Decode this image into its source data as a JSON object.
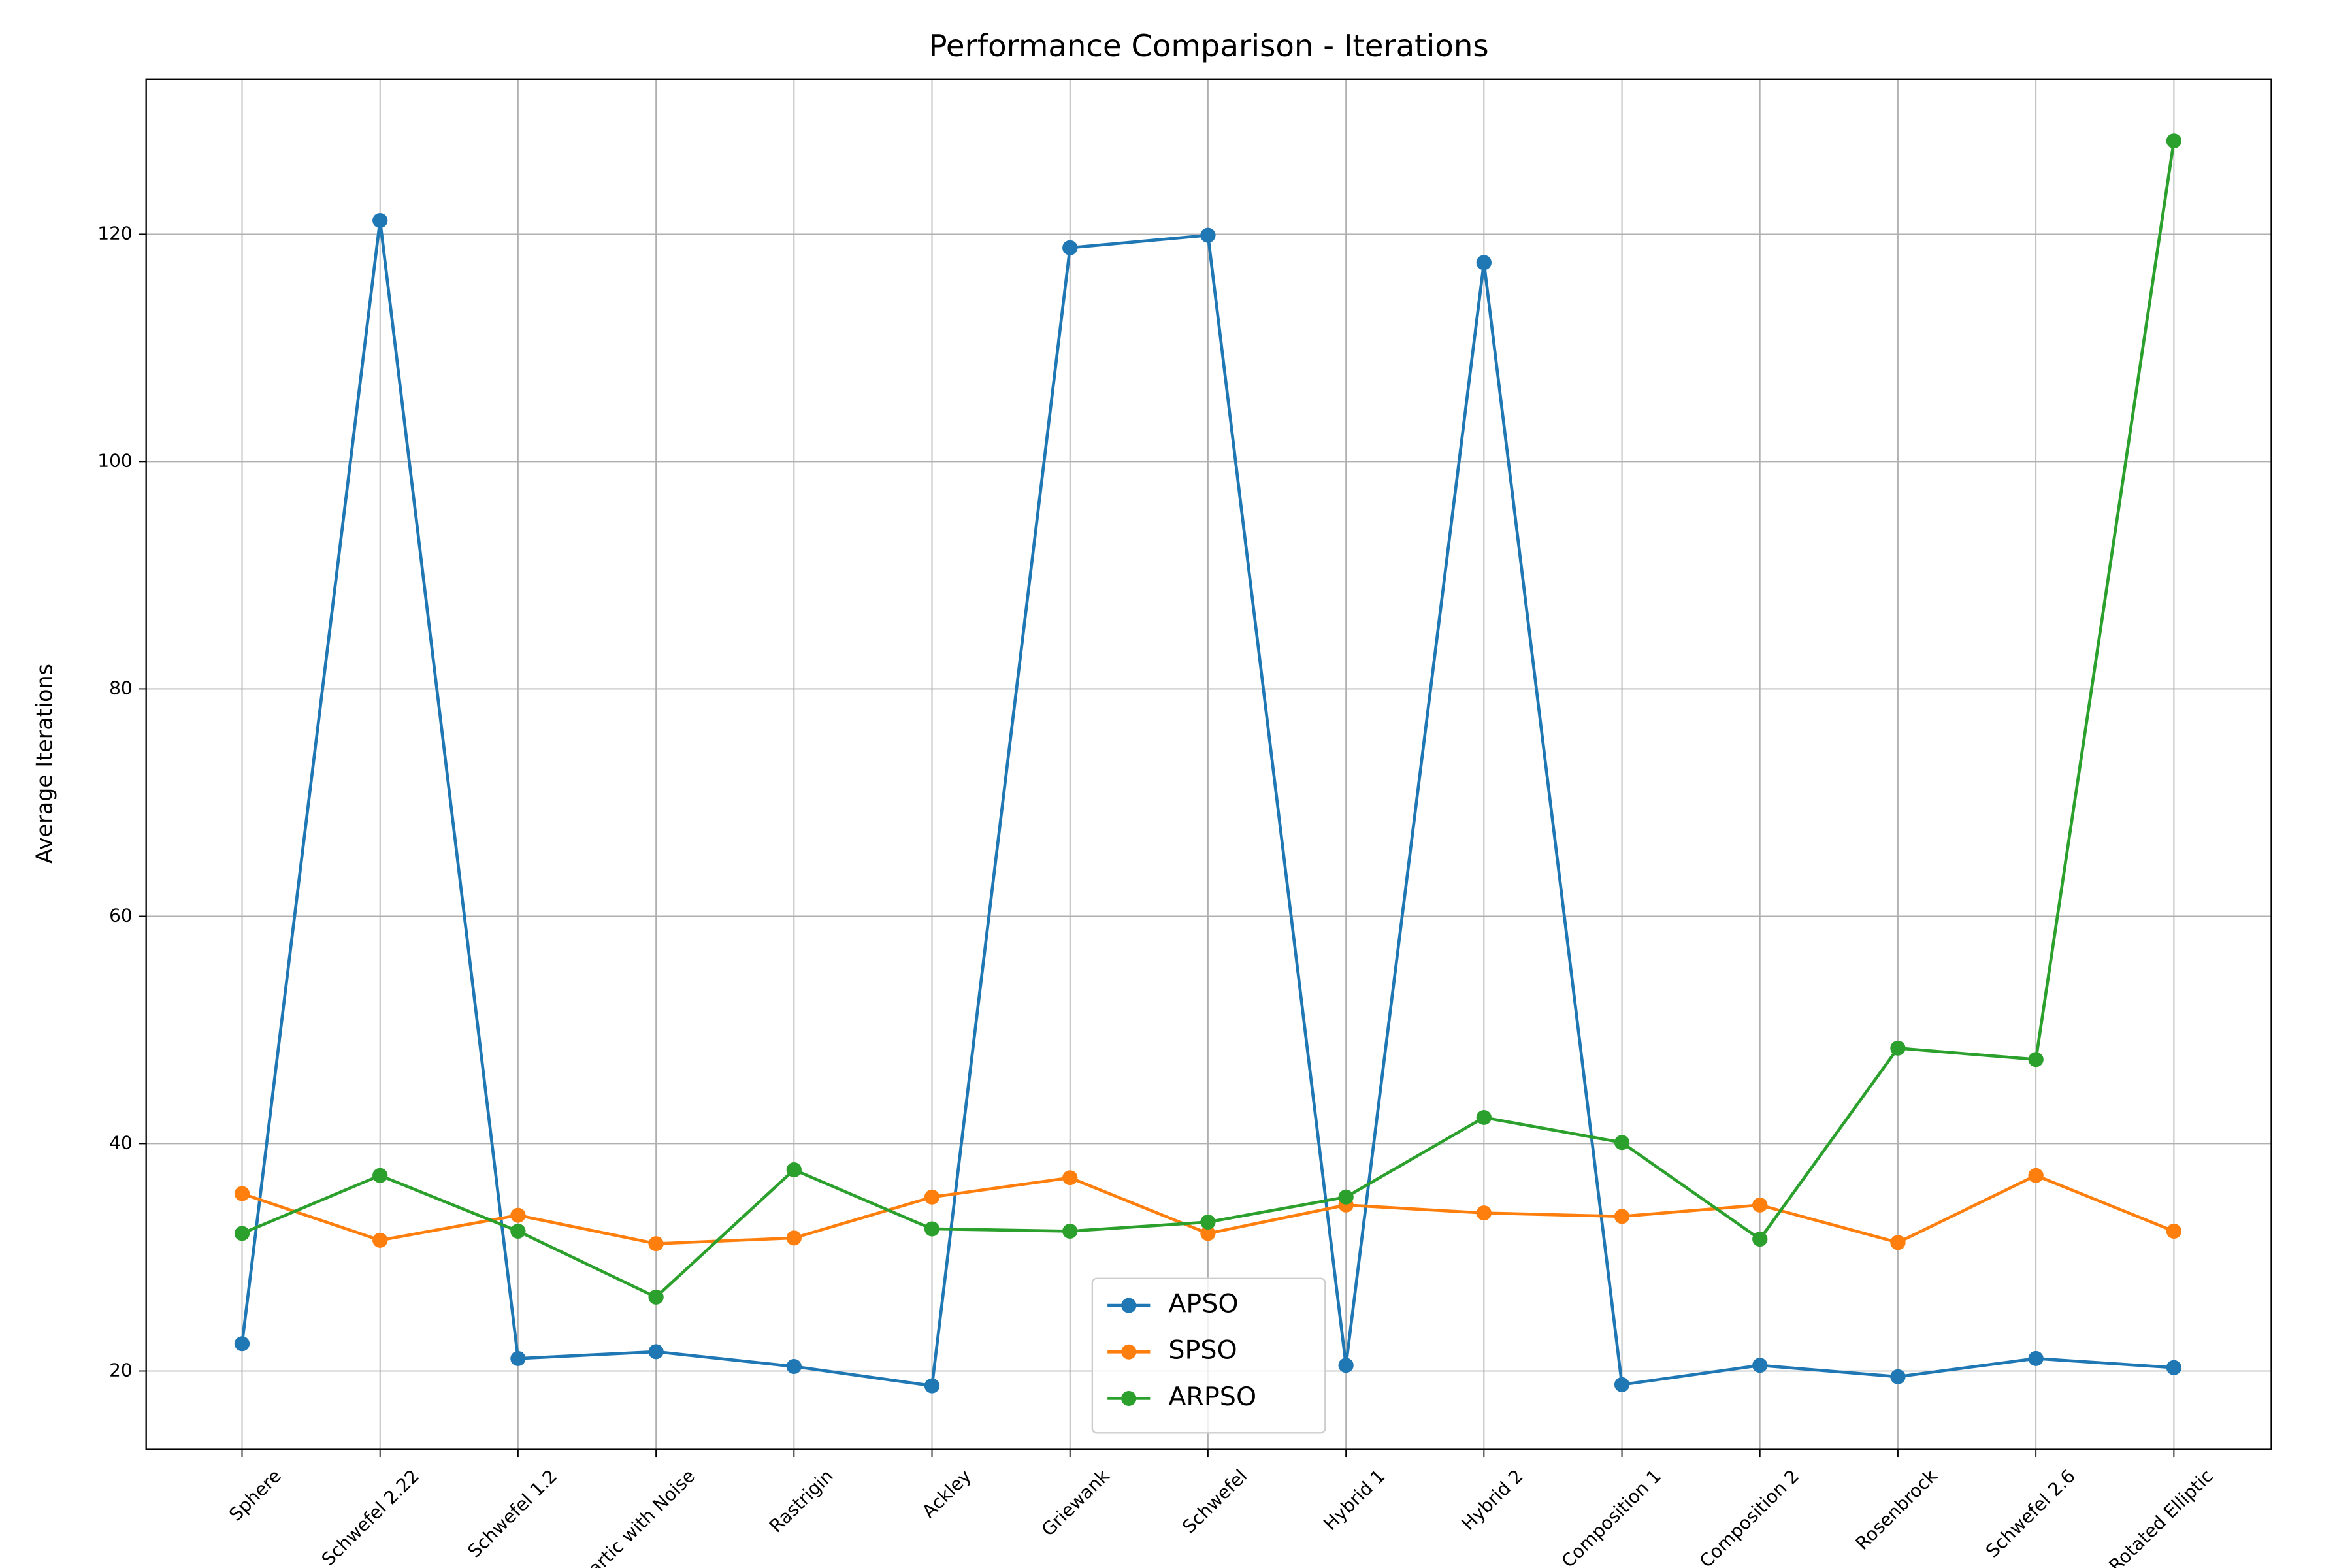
{
  "chart_data": {
    "type": "line",
    "title": "Performance Comparison - Iterations",
    "ylabel": "Average Iterations",
    "categories": [
      "Sphere",
      "Schwefel 2.22",
      "Schwefel 1.2",
      "Quartic with Noise",
      "Rastrigin",
      "Ackley",
      "Griewank",
      "Schwefel",
      "Hybrid 1",
      "Hybrid 2",
      "Composition 1",
      "Composition 2",
      "Rosenbrock",
      "Schwefel 2.6",
      "Rotated Elliptic"
    ],
    "series": [
      {
        "name": "APSO",
        "color": "#1f77b4",
        "values": [
          22.4,
          121.2,
          21.1,
          21.7,
          20.4,
          18.7,
          118.8,
          119.9,
          20.5,
          117.5,
          18.8,
          20.5,
          19.5,
          21.1,
          20.3
        ]
      },
      {
        "name": "SPSO",
        "color": "#ff7f0e",
        "values": [
          35.6,
          31.5,
          33.7,
          31.2,
          31.7,
          35.3,
          37.0,
          32.1,
          34.6,
          33.9,
          33.6,
          34.6,
          31.3,
          37.2,
          32.3
        ]
      },
      {
        "name": "ARPSO",
        "color": "#2ca02c",
        "values": [
          32.1,
          37.2,
          32.3,
          26.5,
          37.7,
          32.5,
          32.3,
          33.1,
          35.3,
          42.3,
          40.1,
          31.6,
          48.4,
          47.4,
          128.2
        ]
      }
    ],
    "ylim": [
      13.1,
      133.6
    ],
    "yticks": [
      20,
      40,
      60,
      80,
      100,
      120
    ],
    "grid": true,
    "legend": "lower center"
  }
}
